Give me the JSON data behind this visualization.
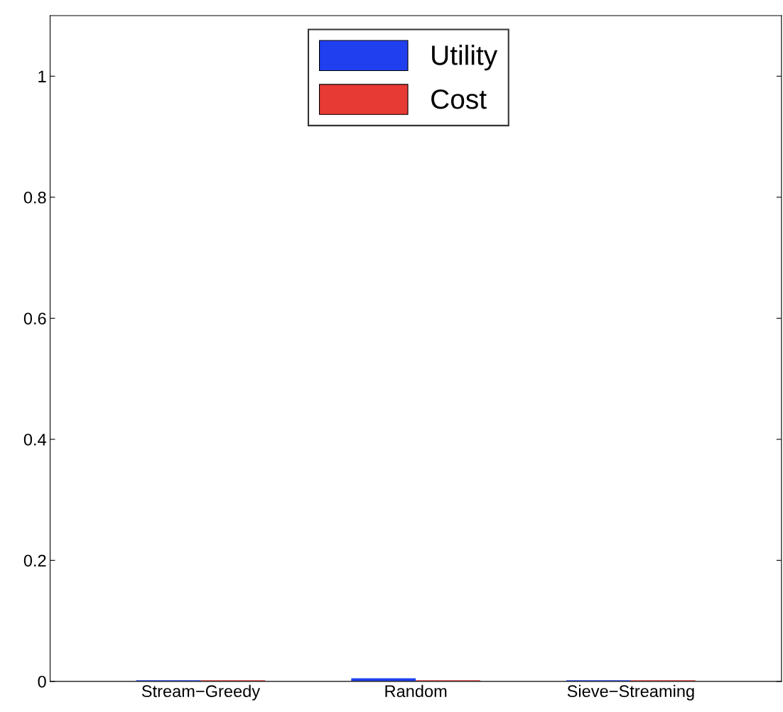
{
  "chart_data": {
    "type": "bar",
    "categories": [
      "Stream−Greedy",
      "Random",
      "Sieve−Streaming"
    ],
    "series": [
      {
        "name": "Utility",
        "color": "#2040f0",
        "values": [
          0.002,
          0.005,
          0.002
        ]
      },
      {
        "name": "Cost",
        "color": "#e83a35",
        "values": [
          0.002,
          0.002,
          0.002
        ]
      }
    ],
    "ylim": [
      0,
      1.1
    ],
    "yticks": [
      0,
      0.2,
      0.4,
      0.6,
      0.8,
      1
    ],
    "grid": false,
    "legend": "top"
  }
}
